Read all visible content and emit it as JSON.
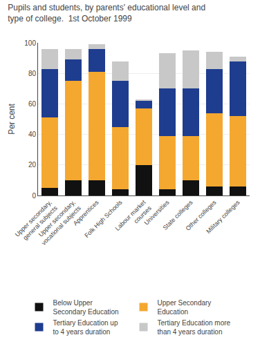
{
  "chart_data": {
    "type": "bar",
    "title": "Pupils and students, by parents' educational level and\ntype of college.  1st October 1999",
    "ylabel": "Per cent",
    "categories": [
      "Upper secondary,\ngeneral subjects",
      "Upper secondary,\nvocational subjects",
      "Apprentices",
      "Folk High Schools",
      "Labour market\ncourses",
      "Universities",
      "State colleges",
      "Other colleges",
      "Military colleges"
    ],
    "series": [
      {
        "name": "Below Upper\nSecondary Education",
        "color": "#111111",
        "values": [
          5,
          10,
          10,
          4,
          20,
          4,
          10,
          6,
          6
        ]
      },
      {
        "name": "Upper Secondary\nEducation",
        "color": "#f4a830",
        "values": [
          46,
          65,
          71,
          41,
          37,
          35,
          29,
          48,
          46
        ]
      },
      {
        "name": "Tertiary Education up\nto 4 years duration",
        "color": "#1e3d8f",
        "values": [
          32,
          14,
          15,
          30,
          5,
          31,
          31,
          29,
          36
        ]
      },
      {
        "name": "Tertiary Education more\nthan 4 years duration",
        "color": "#c8c8c8",
        "values": [
          13,
          7,
          3,
          13,
          1,
          23,
          25,
          11,
          3
        ]
      }
    ],
    "stacked": true,
    "ylim": [
      0,
      100
    ],
    "yticks": [
      0,
      20,
      40,
      60,
      80,
      100
    ],
    "grid": true,
    "legend": "bottom"
  }
}
